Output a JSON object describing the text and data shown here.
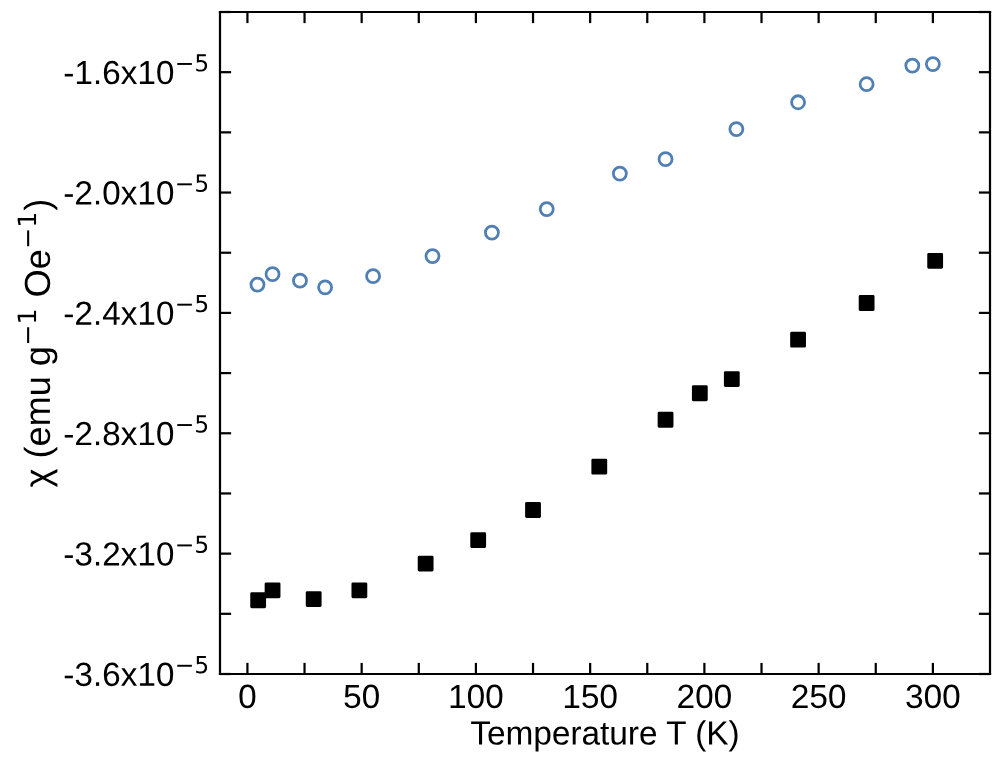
{
  "chart_data": {
    "type": "scatter",
    "xlabel": "Temperature T (K)",
    "ylabel": "χ (emu g$^{−1}$ Oe$^{−1}$)",
    "xlim": [
      -12,
      325
    ],
    "ylim": [
      -3.6e-05,
      -1.4e-05
    ],
    "xticks": [
      0,
      {
        "value": 25,
        "label": null
      },
      50,
      {
        "value": 75,
        "label": null
      },
      100,
      {
        "value": 125,
        "label": null
      },
      150,
      {
        "value": 175,
        "label": null
      },
      200,
      {
        "value": 225,
        "label": null
      },
      250,
      {
        "value": 275,
        "label": null
      },
      300
    ],
    "yticks": [
      {
        "value": -3.6e-05,
        "label": "-3.6x10$^{−5}$"
      },
      {
        "value": -3.4e-05,
        "label": null
      },
      {
        "value": -3.2e-05,
        "label": "-3.2x10$^{−5}$"
      },
      {
        "value": -3e-05,
        "label": null
      },
      {
        "value": -2.8e-05,
        "label": "-2.8x10$^{−5}$"
      },
      {
        "value": -2.6e-05,
        "label": null
      },
      {
        "value": -2.4e-05,
        "label": "-2.4x10$^{−5}$"
      },
      {
        "value": -2.2e-05,
        "label": null
      },
      {
        "value": -2e-05,
        "label": "-2.0x10$^{−5}$"
      },
      {
        "value": -1.8e-05,
        "label": null
      },
      {
        "value": -1.6e-05,
        "label": "-1.6x10$^{−5}$"
      },
      {
        "value": -1.4e-05,
        "label": null
      }
    ],
    "grid": false,
    "legend": false,
    "series": [
      {
        "color": "#4f7fb5",
        "marker": "circle",
        "x": [
          4.4,
          11,
          23,
          34,
          55,
          81,
          107,
          131,
          163,
          183,
          214,
          241,
          271,
          291,
          300
        ],
        "values": [
          -2.306e-05,
          -2.271e-05,
          -2.293e-05,
          -2.315e-05,
          -2.278e-05,
          -2.211e-05,
          -2.133e-05,
          -2.055e-05,
          -1.937e-05,
          -1.889e-05,
          -1.789e-05,
          -1.7e-05,
          -1.64e-05,
          -1.578e-05,
          -1.573e-05
        ]
      },
      {
        "color": "#000000",
        "marker": "square",
        "x": [
          4.7,
          11,
          29,
          49,
          78,
          101,
          125,
          154,
          183,
          198,
          212,
          241,
          271,
          301
        ],
        "values": [
          -3.355e-05,
          -3.322e-05,
          -3.351e-05,
          -3.322e-05,
          -3.233e-05,
          -3.155e-05,
          -3.055e-05,
          -2.911e-05,
          -2.755e-05,
          -2.667e-05,
          -2.62e-05,
          -2.489e-05,
          -2.367e-05,
          -2.227e-05
        ]
      }
    ]
  }
}
